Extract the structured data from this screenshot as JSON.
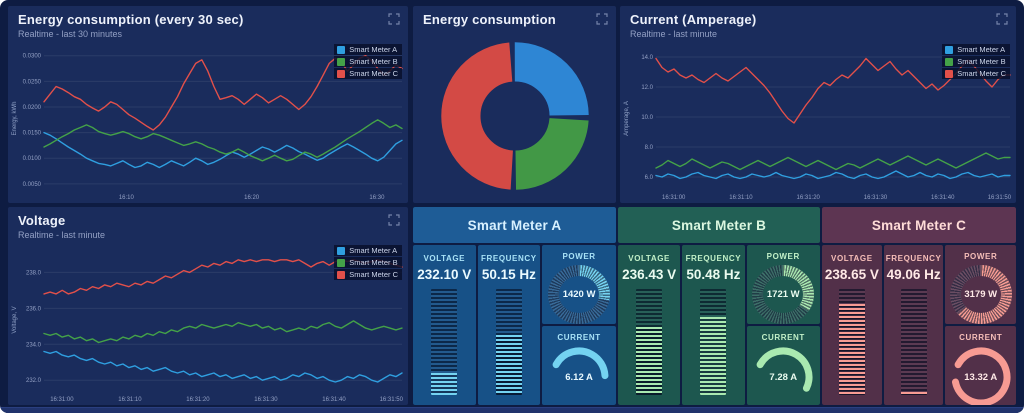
{
  "colors": {
    "background": "#0e1c42",
    "panel_bg": "#1a2c5c",
    "meter_a": "#2f9fe0",
    "meter_b": "#44a248",
    "meter_c": "#e2504a",
    "donut_blue": "#2e86d4",
    "donut_green": "#429846",
    "donut_red": "#d34a45"
  },
  "legend": [
    {
      "label": "Smart Meter A",
      "color": "#2f9fe0"
    },
    {
      "label": "Smart Meter B",
      "color": "#44a248"
    },
    {
      "label": "Smart Meter C",
      "color": "#e2504a"
    }
  ],
  "panels": {
    "energy30": {
      "title": "Energy consumption (every 30 sec)",
      "subtitle": "Realtime - last 30 minutes"
    },
    "donut": {
      "title": "Energy consumption"
    },
    "current": {
      "title": "Current (Amperage)",
      "subtitle": "Realtime - last minute"
    },
    "voltage": {
      "title": "Voltage",
      "subtitle": "Realtime - last minute"
    }
  },
  "chart_data": [
    {
      "type": "line",
      "title": "Energy consumption (every 30 sec)",
      "ylabel": "Energy, kWh",
      "ylim": [
        0.004,
        0.0315
      ],
      "grid": true,
      "legend_position": "top-right",
      "yticks": [
        {
          "v": 0.03,
          "l": "0.0300"
        },
        {
          "v": 0.025,
          "l": "0.0250"
        },
        {
          "v": 0.02,
          "l": "0.0200"
        },
        {
          "v": 0.015,
          "l": "0.0150"
        },
        {
          "v": 0.01,
          "l": "0.0100"
        },
        {
          "v": 0.005,
          "l": "0.0050"
        }
      ],
      "xticks": [
        "16:10",
        "16:20",
        "16:30"
      ],
      "xtick_pos": [
        0.23,
        0.58,
        0.93
      ],
      "series": [
        {
          "name": "Smart Meter A",
          "color": "#2f9fe0",
          "values": [
            0.015,
            0.0145,
            0.0138,
            0.013,
            0.0122,
            0.0115,
            0.0108,
            0.01,
            0.0095,
            0.009,
            0.0088,
            0.0085,
            0.009,
            0.0095,
            0.0088,
            0.0082,
            0.0085,
            0.0092,
            0.0088,
            0.0082,
            0.0088,
            0.0095,
            0.009,
            0.0085,
            0.0092,
            0.01,
            0.0095,
            0.0088,
            0.0092,
            0.0098,
            0.0105,
            0.0112,
            0.0108,
            0.0102,
            0.0108,
            0.0115,
            0.0122,
            0.0118,
            0.0112,
            0.0118,
            0.0125,
            0.012,
            0.0113,
            0.0108,
            0.0102,
            0.0096,
            0.01,
            0.0108,
            0.0115,
            0.0122,
            0.0128,
            0.0122,
            0.0115,
            0.0108,
            0.01,
            0.0095,
            0.0102,
            0.0115,
            0.0128,
            0.0135
          ]
        },
        {
          "name": "Smart Meter B",
          "color": "#44a248",
          "values": [
            0.0122,
            0.0128,
            0.0135,
            0.0142,
            0.0148,
            0.0155,
            0.016,
            0.0165,
            0.016,
            0.0152,
            0.0148,
            0.0145,
            0.0148,
            0.0152,
            0.0148,
            0.0142,
            0.0138,
            0.0142,
            0.0148,
            0.0145,
            0.014,
            0.0135,
            0.013,
            0.0125,
            0.0128,
            0.0132,
            0.0128,
            0.0122,
            0.0118,
            0.0112,
            0.0108,
            0.0112,
            0.0118,
            0.0112,
            0.0105,
            0.01,
            0.0095,
            0.01,
            0.0106,
            0.01,
            0.0095,
            0.0098,
            0.0105,
            0.0112,
            0.0108,
            0.0102,
            0.0108,
            0.0115,
            0.0122,
            0.013,
            0.0138,
            0.0145,
            0.0152,
            0.016,
            0.0168,
            0.0175,
            0.0168,
            0.016,
            0.0165,
            0.0158
          ]
        },
        {
          "name": "Smart Meter C",
          "color": "#e2504a",
          "values": [
            0.021,
            0.0225,
            0.024,
            0.0235,
            0.0228,
            0.022,
            0.0215,
            0.0205,
            0.0198,
            0.0192,
            0.02,
            0.021,
            0.0205,
            0.0195,
            0.0185,
            0.0178,
            0.017,
            0.0162,
            0.0155,
            0.0165,
            0.018,
            0.02,
            0.022,
            0.0245,
            0.0265,
            0.0285,
            0.0292,
            0.027,
            0.024,
            0.0215,
            0.0218,
            0.0222,
            0.0215,
            0.0205,
            0.0215,
            0.0225,
            0.0218,
            0.0208,
            0.0215,
            0.0222,
            0.0215,
            0.0205,
            0.0195,
            0.0205,
            0.022,
            0.024,
            0.0262,
            0.0285,
            0.0295,
            0.0288,
            0.027,
            0.0282,
            0.0295,
            0.03,
            0.029,
            0.0275,
            0.0262,
            0.027,
            0.0282,
            0.0275
          ]
        }
      ]
    },
    {
      "type": "pie",
      "title": "Energy consumption",
      "labels": [
        "Smart Meter A",
        "Smart Meter B",
        "Smart Meter C"
      ],
      "values": [
        26,
        25,
        49
      ],
      "colors": [
        "#2e86d4",
        "#429846",
        "#d34a45"
      ]
    },
    {
      "type": "line",
      "title": "Current (Amperage)",
      "ylabel": "Amperage, A",
      "ylim": [
        5.2,
        14.6
      ],
      "grid": true,
      "legend_position": "top-right",
      "yticks": [
        {
          "v": 14.0,
          "l": "14.0"
        },
        {
          "v": 12.0,
          "l": "12.0"
        },
        {
          "v": 10.0,
          "l": "10.0"
        },
        {
          "v": 8.0,
          "l": "8.0"
        },
        {
          "v": 6.0,
          "l": "6.0"
        }
      ],
      "xticks": [
        "16:31:00",
        "16:31:10",
        "16:31:20",
        "16:31:30",
        "16:31:40",
        "16:31:50"
      ],
      "xtick_pos": [
        0.05,
        0.24,
        0.43,
        0.62,
        0.81,
        0.97
      ],
      "series": [
        {
          "name": "Smart Meter A",
          "color": "#2f9fe0",
          "values": [
            6.1,
            6.0,
            6.2,
            6.1,
            5.9,
            6.0,
            6.2,
            6.3,
            6.1,
            6.0,
            5.9,
            6.1,
            6.2,
            6.0,
            5.9,
            6.0,
            6.2,
            6.1,
            6.0,
            6.1,
            6.3,
            6.1,
            6.0,
            5.9,
            6.0,
            6.2,
            6.1,
            5.9,
            6.0,
            6.1,
            6.3,
            6.2,
            6.0,
            5.9,
            6.1,
            6.2,
            6.0,
            5.9,
            6.0,
            6.2,
            6.4,
            6.2,
            6.0,
            6.1,
            6.3,
            6.1,
            6.0,
            6.2,
            6.1,
            5.9,
            6.0,
            6.2,
            6.3,
            6.1,
            6.0,
            6.1,
            6.2,
            6.0,
            6.1,
            6.1
          ]
        },
        {
          "name": "Smart Meter B",
          "color": "#44a248",
          "values": [
            6.6,
            6.8,
            7.1,
            6.9,
            6.7,
            6.9,
            7.2,
            7.0,
            6.8,
            6.6,
            6.8,
            7.0,
            6.9,
            6.7,
            6.5,
            6.7,
            6.9,
            7.1,
            6.9,
            6.7,
            6.9,
            7.1,
            7.3,
            7.1,
            6.9,
            6.7,
            6.9,
            7.1,
            6.9,
            6.7,
            6.5,
            6.7,
            6.9,
            6.8,
            6.6,
            6.8,
            7.0,
            7.2,
            7.0,
            6.8,
            7.0,
            7.2,
            7.4,
            7.2,
            7.0,
            6.8,
            7.0,
            7.2,
            7.0,
            6.8,
            6.6,
            6.8,
            7.0,
            7.2,
            7.4,
            7.6,
            7.4,
            7.2,
            7.3,
            7.3
          ]
        },
        {
          "name": "Smart Meter C",
          "color": "#e2504a",
          "values": [
            13.9,
            13.3,
            13.0,
            13.2,
            12.8,
            12.6,
            12.8,
            12.5,
            12.3,
            12.6,
            12.9,
            12.6,
            12.4,
            12.7,
            13.0,
            13.3,
            12.9,
            12.5,
            12.1,
            11.6,
            11.0,
            10.4,
            9.9,
            9.6,
            10.2,
            10.8,
            11.3,
            11.9,
            12.3,
            12.1,
            12.5,
            12.8,
            12.6,
            13.0,
            13.4,
            13.9,
            13.5,
            13.1,
            13.4,
            13.7,
            13.2,
            12.8,
            13.1,
            12.7,
            12.3,
            11.9,
            12.2,
            11.8,
            12.1,
            12.5,
            12.9,
            13.4,
            13.8,
            13.4,
            12.9,
            12.4,
            12.0,
            12.5,
            12.8,
            12.8
          ]
        }
      ]
    },
    {
      "type": "line",
      "title": "Voltage",
      "ylabel": "Voltage, V",
      "ylim": [
        231.4,
        239.3
      ],
      "grid": true,
      "legend_position": "top-right",
      "yticks": [
        {
          "v": 238.0,
          "l": "238.0"
        },
        {
          "v": 236.0,
          "l": "236.0"
        },
        {
          "v": 234.0,
          "l": "234.0"
        },
        {
          "v": 232.0,
          "l": "232.0"
        }
      ],
      "xticks": [
        "16:31:00",
        "16:31:10",
        "16:31:20",
        "16:31:30",
        "16:31:40",
        "16:31:50"
      ],
      "xtick_pos": [
        0.05,
        0.24,
        0.43,
        0.62,
        0.81,
        0.97
      ],
      "series": [
        {
          "name": "Smart Meter A",
          "color": "#2f9fe0",
          "values": [
            233.6,
            233.5,
            233.6,
            233.4,
            233.3,
            233.4,
            233.2,
            233.1,
            233.2,
            233.0,
            232.9,
            233.0,
            232.8,
            232.9,
            232.7,
            232.8,
            232.6,
            232.7,
            232.5,
            232.6,
            232.7,
            232.5,
            232.4,
            232.5,
            232.3,
            232.4,
            232.2,
            232.3,
            232.4,
            232.2,
            232.3,
            232.1,
            232.2,
            232.3,
            232.1,
            232.2,
            232.0,
            232.1,
            232.2,
            232.0,
            232.1,
            232.3,
            232.2,
            232.4,
            232.3,
            232.1,
            232.2,
            232.0,
            231.9,
            232.0,
            232.2,
            232.1,
            232.3,
            232.2,
            232.0,
            231.9,
            232.1,
            232.3,
            232.2,
            232.4
          ]
        },
        {
          "name": "Smart Meter B",
          "color": "#44a248",
          "values": [
            234.6,
            234.5,
            234.6,
            234.4,
            234.5,
            234.3,
            234.4,
            234.2,
            234.3,
            234.1,
            234.2,
            234.3,
            234.2,
            234.4,
            234.3,
            234.5,
            234.4,
            234.6,
            234.5,
            234.7,
            234.6,
            234.8,
            234.7,
            234.9,
            235.0,
            234.9,
            235.1,
            235.0,
            234.9,
            235.0,
            235.1,
            235.0,
            235.2,
            235.1,
            235.0,
            235.1,
            234.9,
            235.0,
            234.8,
            234.9,
            234.7,
            234.8,
            234.9,
            234.8,
            235.0,
            234.9,
            235.1,
            235.2,
            235.0,
            234.9,
            235.1,
            235.3,
            235.1,
            234.9,
            234.8,
            234.9,
            235.0,
            234.9,
            234.8,
            234.9
          ]
        },
        {
          "name": "Smart Meter C",
          "color": "#e2504a",
          "values": [
            236.8,
            236.9,
            236.8,
            237.0,
            236.8,
            236.9,
            237.1,
            237.0,
            237.2,
            237.1,
            237.3,
            237.2,
            237.4,
            237.3,
            237.2,
            237.4,
            237.3,
            237.5,
            237.4,
            237.6,
            237.8,
            237.7,
            237.9,
            238.1,
            238.0,
            238.2,
            238.4,
            238.3,
            238.5,
            238.4,
            238.6,
            238.5,
            238.7,
            238.6,
            238.7,
            238.6,
            238.7,
            238.7,
            238.6,
            238.7,
            238.7,
            238.6,
            238.7,
            238.5,
            238.3,
            238.5,
            238.6,
            238.4,
            238.6,
            238.7,
            238.6,
            238.7,
            238.6,
            238.5,
            238.6,
            238.7,
            238.6,
            238.5,
            238.4,
            238.3
          ]
        }
      ]
    }
  ],
  "meters": [
    {
      "name": "Smart Meter A",
      "theme": {
        "accent": "#74d3f1",
        "header_bg": "#1e5c96",
        "card_bg": "#175187",
        "label": "#a8e2f7",
        "value": "#eafaff",
        "title": "#d8f1ff"
      },
      "voltage": {
        "label": "VOLTAGE",
        "value": "232.10 V",
        "fill_pct": 21
      },
      "frequency": {
        "label": "FREQUENCY",
        "value": "50.15 Hz",
        "fill_pct": 57
      },
      "power": {
        "label": "POWER",
        "value": "1420 W",
        "fill_pct": 28
      },
      "current": {
        "label": "CURRENT",
        "value": "6.12 A",
        "fill_pct": 41
      }
    },
    {
      "name": "Smart Meter B",
      "theme": {
        "accent": "#a9e9b0",
        "header_bg": "#226055",
        "card_bg": "#1d574f",
        "label": "#c2f0c8",
        "value": "#eafbef",
        "title": "#dcf7e0"
      },
      "voltage": {
        "label": "VOLTAGE",
        "value": "236.43 V",
        "fill_pct": 64
      },
      "frequency": {
        "label": "FREQUENCY",
        "value": "50.48 Hz",
        "fill_pct": 74
      },
      "power": {
        "label": "POWER",
        "value": "1721 W",
        "fill_pct": 34
      },
      "current": {
        "label": "CURRENT",
        "value": "7.28 A",
        "fill_pct": 49
      }
    },
    {
      "name": "Smart Meter C",
      "theme": {
        "accent": "#f79b93",
        "header_bg": "#5d3552",
        "card_bg": "#523049",
        "label": "#f6beb8",
        "value": "#ffe9e6",
        "title": "#ffdcd8"
      },
      "voltage": {
        "label": "VOLTAGE",
        "value": "238.65 V",
        "fill_pct": 86
      },
      "frequency": {
        "label": "FREQUENCY",
        "value": "49.06 Hz",
        "fill_pct": 3
      },
      "power": {
        "label": "POWER",
        "value": "3179 W",
        "fill_pct": 64
      },
      "current": {
        "label": "CURRENT",
        "value": "13.32 A",
        "fill_pct": 89
      }
    }
  ]
}
